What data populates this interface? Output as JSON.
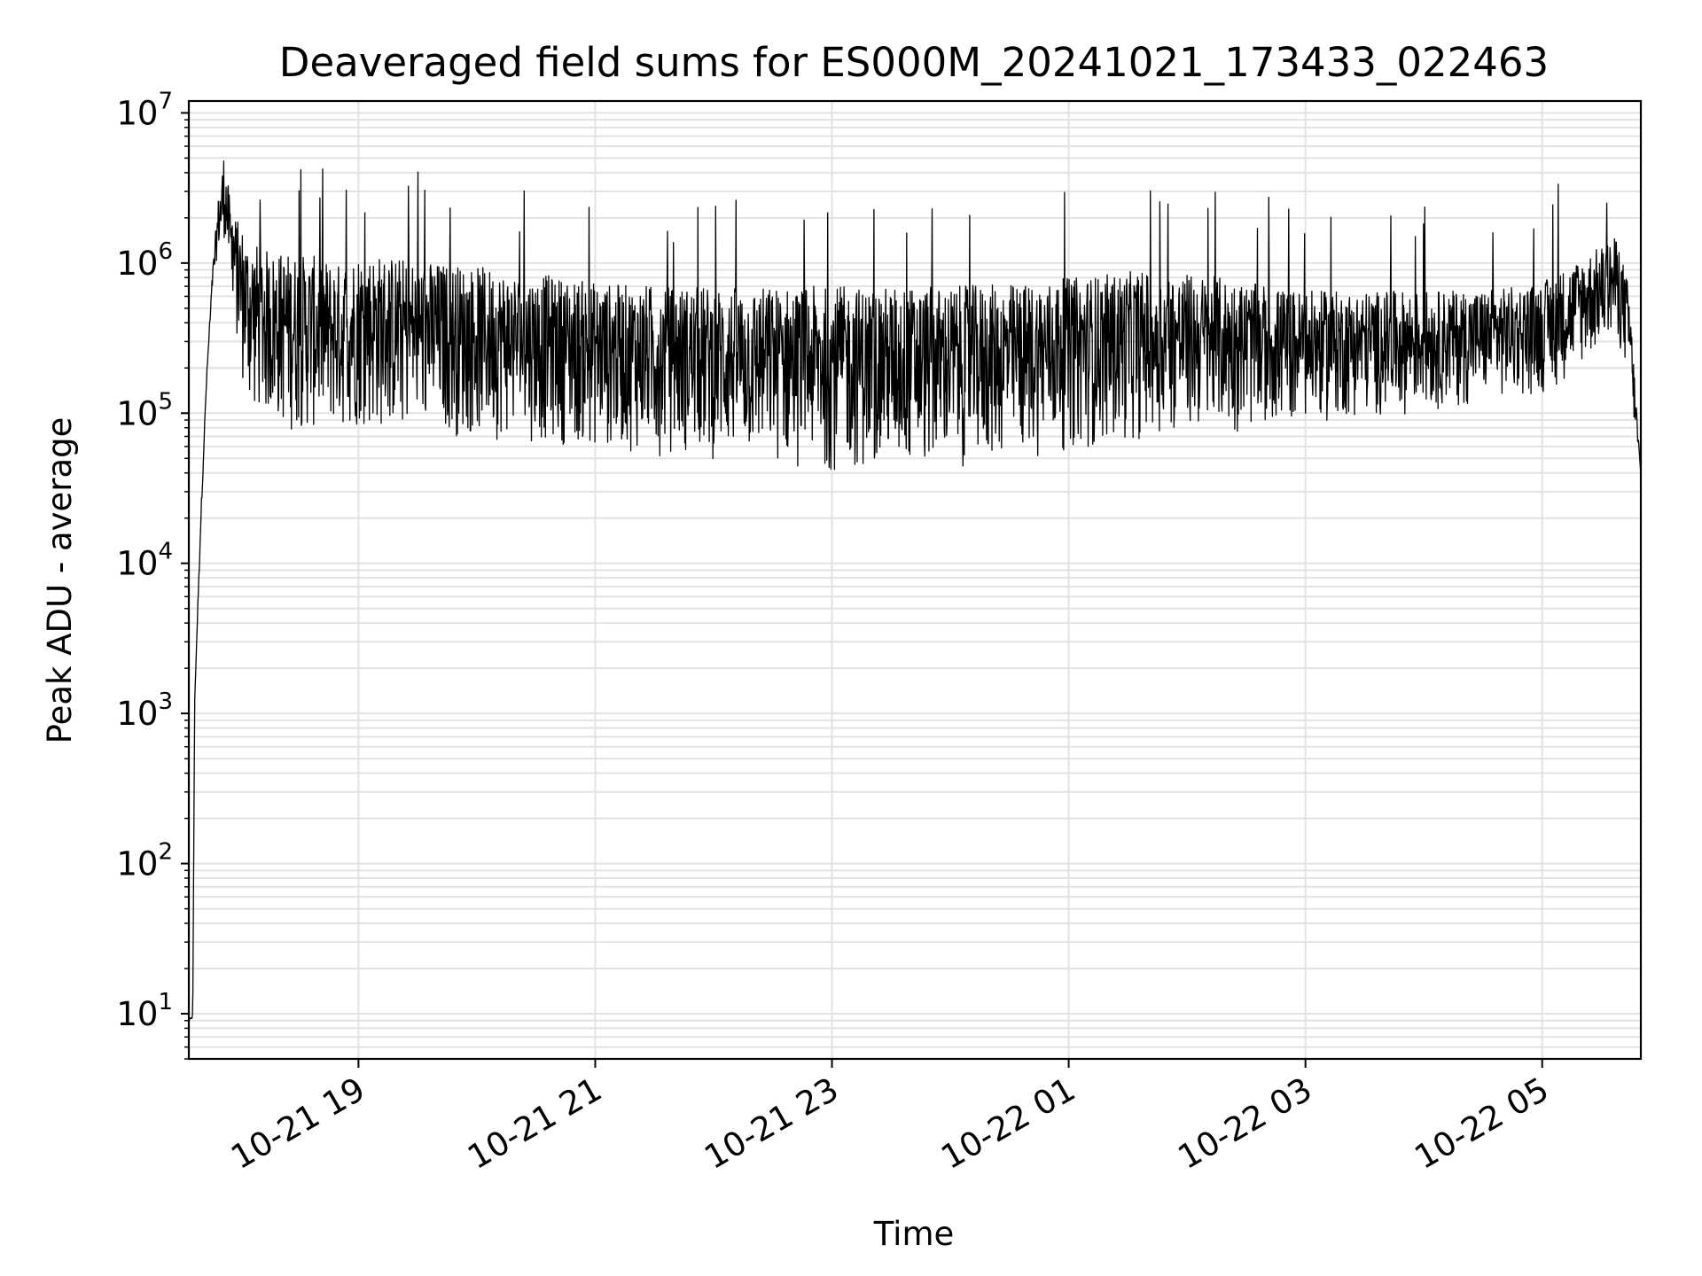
{
  "chart_data": {
    "type": "line",
    "title": "Deaveraged field sums for ES000M_20241021_173433_022463",
    "xlabel": "Time",
    "ylabel": "Peak ADU - average",
    "yscale": "log",
    "ylim": [
      5,
      12000000
    ],
    "xlim": [
      "2024-10-21 17:34",
      "2024-10-22 05:50"
    ],
    "grid": true,
    "x_ticks": [
      {
        "t": "2024-10-21 19:00",
        "label": "10-21 19"
      },
      {
        "t": "2024-10-21 21:00",
        "label": "10-21 21"
      },
      {
        "t": "2024-10-21 23:00",
        "label": "10-21 23"
      },
      {
        "t": "2024-10-22 01:00",
        "label": "10-22 01"
      },
      {
        "t": "2024-10-22 03:00",
        "label": "10-22 03"
      },
      {
        "t": "2024-10-22 05:00",
        "label": "10-22 05"
      }
    ],
    "y_ticks": [
      {
        "value": 10,
        "base": "10",
        "exp": "1"
      },
      {
        "value": 100,
        "base": "10",
        "exp": "2"
      },
      {
        "value": 1000,
        "base": "10",
        "exp": "3"
      },
      {
        "value": 10000,
        "base": "10",
        "exp": "4"
      },
      {
        "value": 100000,
        "base": "10",
        "exp": "5"
      },
      {
        "value": 1000000,
        "base": "10",
        "exp": "6"
      },
      {
        "value": 10000000,
        "base": "10",
        "exp": "7"
      }
    ],
    "series": [
      {
        "color": "#000000",
        "x": [
          "2024-10-21 17:34",
          "2024-10-21 17:36",
          "2024-10-21 17:37",
          "2024-10-21 17:40",
          "2024-10-21 17:43",
          "2024-10-21 17:46",
          "2024-10-21 17:49",
          "2024-10-21 17:52",
          "2024-10-21 17:55",
          "2024-10-21 17:58",
          "2024-10-21 18:01",
          "2024-10-21 18:04",
          "2024-10-21 18:07",
          "2024-10-21 18:10",
          "2024-10-21 18:15",
          "2024-10-21 18:20",
          "2024-10-21 18:30",
          "2024-10-21 18:40",
          "2024-10-21 18:50",
          "2024-10-21 19:00",
          "2024-10-21 19:10",
          "2024-10-21 19:20",
          "2024-10-21 19:30",
          "2024-10-21 19:45",
          "2024-10-21 20:00",
          "2024-10-21 20:15",
          "2024-10-21 20:30",
          "2024-10-21 20:45",
          "2024-10-21 21:00",
          "2024-10-21 21:15",
          "2024-10-21 21:30",
          "2024-10-21 21:45",
          "2024-10-21 22:00",
          "2024-10-21 22:20",
          "2024-10-21 22:40",
          "2024-10-21 23:00",
          "2024-10-21 23:20",
          "2024-10-21 23:40",
          "2024-10-22 00:00",
          "2024-10-22 00:20",
          "2024-10-22 00:40",
          "2024-10-22 01:00",
          "2024-10-22 01:20",
          "2024-10-22 01:40",
          "2024-10-22 02:00",
          "2024-10-22 02:20",
          "2024-10-22 02:40",
          "2024-10-22 03:00",
          "2024-10-22 03:20",
          "2024-10-22 03:40",
          "2024-10-22 04:00",
          "2024-10-22 04:20",
          "2024-10-22 04:40",
          "2024-10-22 05:00",
          "2024-10-22 05:10",
          "2024-10-22 05:20",
          "2024-10-22 05:30",
          "2024-10-22 05:38",
          "2024-10-22 05:44",
          "2024-10-22 05:50"
        ],
        "envelope_upper": [
          9,
          10,
          1300,
          20000,
          180000,
          900000,
          2800000,
          6000000,
          2500000,
          2000000,
          1800000,
          1500000,
          1400000,
          1300000,
          1200000,
          1200000,
          1150000,
          1100000,
          1000000,
          1200000,
          1150000,
          1100000,
          1050000,
          1000000,
          950000,
          900000,
          850000,
          800000,
          750000,
          720000,
          720000,
          700000,
          700000,
          700000,
          700000,
          700000,
          700000,
          700000,
          700000,
          720000,
          740000,
          800000,
          850000,
          900000,
          850000,
          800000,
          700000,
          650000,
          650000,
          650000,
          650000,
          660000,
          680000,
          750000,
          900000,
          1100000,
          1300000,
          1500000,
          700000,
          40000
        ],
        "envelope_lower": [
          9,
          9,
          1200,
          15000,
          150000,
          600000,
          900000,
          800000,
          600000,
          300000,
          150000,
          100000,
          90000,
          85000,
          80000,
          75000,
          70000,
          70000,
          70000,
          75000,
          72000,
          70000,
          70000,
          68000,
          65000,
          65000,
          62000,
          60000,
          55000,
          55000,
          52000,
          50000,
          47000,
          45000,
          42000,
          40000,
          40000,
          40000,
          42000,
          45000,
          50000,
          55000,
          60000,
          65000,
          70000,
          72000,
          75000,
          80000,
          90000,
          95000,
          100000,
          110000,
          120000,
          130000,
          150000,
          200000,
          250000,
          300000,
          150000,
          35000
        ]
      }
    ]
  }
}
